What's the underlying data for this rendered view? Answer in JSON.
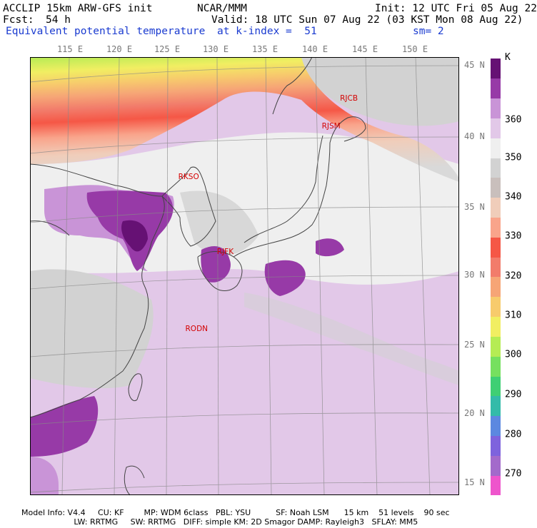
{
  "header": {
    "model_title": "ACCLIP 15km ARW-GFS init",
    "center": "NCAR/MMM",
    "init_time": "Init: 12 UTC Fri 05 Aug 22",
    "forecast_label": "Fcst:",
    "forecast_hours": "54 h",
    "valid_time": "Valid: 18 UTC Sun 07 Aug 22 (03 KST Mon 08 Aug 22)",
    "field_name": "Equivalent potential temperature",
    "level": "at k-index =  51",
    "smoothing": "sm= 2"
  },
  "map": {
    "lon_labels": [
      "115 E",
      "120 E",
      "125 E",
      "130 E",
      "135 E",
      "140 E",
      "145 E",
      "150 E"
    ],
    "lat_labels": [
      "45 N",
      "40 N",
      "35 N",
      "30 N",
      "25 N",
      "20 N",
      "15 N"
    ],
    "stations": [
      {
        "id": "RJCB",
        "lon": 143.2,
        "lat": 42.7
      },
      {
        "id": "RJSM",
        "lon": 141.4,
        "lat": 40.7
      },
      {
        "id": "RKSO",
        "lon": 127.0,
        "lat": 37.1
      },
      {
        "id": "RJFK",
        "lon": 130.7,
        "lat": 31.8
      },
      {
        "id": "RODN",
        "lon": 127.8,
        "lat": 26.3
      }
    ]
  },
  "colorbar": {
    "unit": "K",
    "labels": [
      "360",
      "350",
      "340",
      "330",
      "320",
      "310",
      "300",
      "290",
      "280",
      "270"
    ],
    "colors": [
      "#ee55cc",
      "#a36acb",
      "#7e63dd",
      "#5c88e0",
      "#33bba9",
      "#3fcf74",
      "#76e05f",
      "#b5ec54",
      "#f1ee62",
      "#f7cb6c",
      "#f6a576",
      "#f27c6b",
      "#f55746",
      "#f9a48b",
      "#f0cdba",
      "#c9bfbc",
      "#d2d2d2",
      "#efefef",
      "#e2c8e8",
      "#c994d7",
      "#973aa7",
      "#661174"
    ]
  },
  "footer": {
    "line1": "Model Info: V4.4     CU: KF        MP: WDM 6class   PBL: YSU          SF: Noah LSM      15 km    51 levels    90 sec",
    "line2": "                     LW: RRTMG     SW: RRTMG   DIFF: simple KM: 2D Smagor DAMP: Rayleigh3   SFLAY: MM5"
  }
}
